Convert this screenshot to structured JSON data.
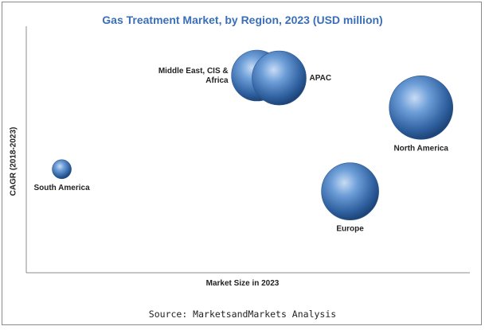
{
  "chart_data": {
    "type": "scatter",
    "title": "Gas Treatment Market, by Region, 2023 (USD million)",
    "xlabel": "Market Size in 2023",
    "ylabel": "CAGR (2018-2023)",
    "source": "Source: MarketsandMarkets Analysis",
    "bubble_color": "#3a6fb8",
    "points": [
      {
        "label_lines": [
          "South America"
        ],
        "x": 8,
        "y": 42,
        "size": 12
      },
      {
        "label_lines": [
          "Middle East, CIS &",
          "Africa"
        ],
        "x": 52,
        "y": 80,
        "size": 32
      },
      {
        "label_lines": [
          "APAC"
        ],
        "x": 57,
        "y": 79,
        "size": 34
      },
      {
        "label_lines": [
          "North America"
        ],
        "x": 89,
        "y": 67,
        "size": 40
      },
      {
        "label_lines": [
          "Europe"
        ],
        "x": 73,
        "y": 33,
        "size": 36
      }
    ]
  }
}
